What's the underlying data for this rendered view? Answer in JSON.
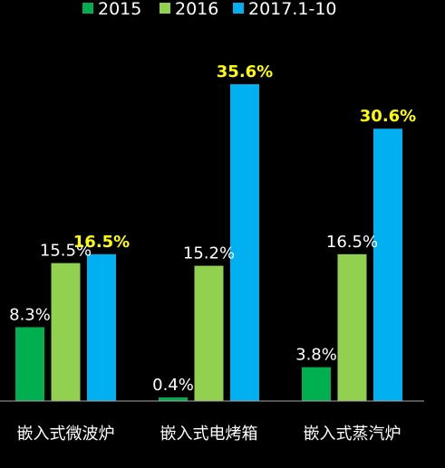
{
  "chart_data": {
    "type": "bar",
    "categories": [
      "嵌入式微波炉",
      "嵌入式电烤箱",
      "嵌入式蒸汽炉"
    ],
    "series": [
      {
        "name": "2015",
        "values": [
          8.3,
          0.4,
          3.8
        ],
        "labels": [
          "8.3%",
          "0.4%",
          "3.8%"
        ],
        "color": "#00b050"
      },
      {
        "name": "2016",
        "values": [
          15.5,
          15.2,
          16.5
        ],
        "labels": [
          "15.5%",
          "15.2%",
          "16.5%"
        ],
        "color": "#92d050"
      },
      {
        "name": "2017.1-10",
        "values": [
          16.5,
          35.6,
          30.6
        ],
        "labels": [
          "16.5%",
          "35.6%",
          "30.6%"
        ],
        "color": "#00b0f0"
      }
    ],
    "highlight_label_color": "#ffff00",
    "label_color": "#ffffff",
    "axis_color": "#a6a6a6",
    "ylim": [
      0,
      40
    ],
    "legend_position": "top",
    "grid": false
  }
}
